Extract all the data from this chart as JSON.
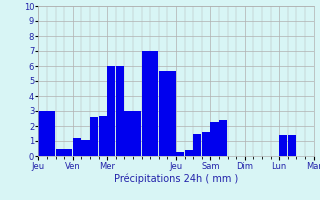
{
  "values": [
    3,
    3,
    0.5,
    0.5,
    1.2,
    1.1,
    2.6,
    2.7,
    6,
    6,
    3,
    3,
    7,
    7,
    5.7,
    5.7,
    0.3,
    0.4,
    1.5,
    1.6,
    2.3,
    2.4,
    0,
    0,
    0,
    0,
    0,
    0,
    1.4,
    1.4,
    0,
    0
  ],
  "bar_color": "#0000ee",
  "bg_color": "#d8f5f5",
  "grid_color": "#b0b0b0",
  "xlabel": "Précipitations 24h ( mm )",
  "xlabel_color": "#2222aa",
  "tick_label_color": "#2222aa",
  "ylim": [
    0,
    10
  ],
  "yticks": [
    0,
    1,
    2,
    3,
    4,
    5,
    6,
    7,
    8,
    9,
    10
  ],
  "day_labels": [
    "Jeu",
    "Ven",
    "Mer",
    "Jeu",
    "Sam",
    "Dim",
    "Lun",
    "Mar"
  ],
  "day_tick_positions": [
    0,
    4,
    8,
    16,
    20,
    24,
    28,
    32
  ],
  "total_bars": 32,
  "figwidth": 3.2,
  "figheight": 2.0,
  "dpi": 100
}
